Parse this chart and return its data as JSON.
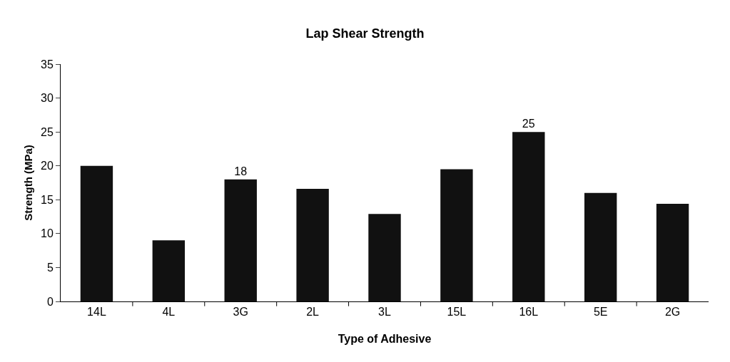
{
  "chart_data": {
    "type": "bar",
    "title": "Lap Shear Strength",
    "xlabel": "Type of Adhesive",
    "ylabel": "Strength (MPa)",
    "categories": [
      "14L",
      "4L",
      "3G",
      "2L",
      "3L",
      "15L",
      "16L",
      "5E",
      "2G"
    ],
    "values": [
      20,
      9,
      18,
      16.6,
      12.9,
      19.5,
      25,
      16,
      14.4
    ],
    "value_labels": [
      null,
      null,
      "18",
      null,
      null,
      null,
      "25",
      null,
      null
    ],
    "color": "#111111",
    "ylim": [
      0,
      35
    ],
    "yticks": [
      0,
      5,
      10,
      15,
      20,
      25,
      30,
      35
    ],
    "grid": false,
    "legend": false
  }
}
